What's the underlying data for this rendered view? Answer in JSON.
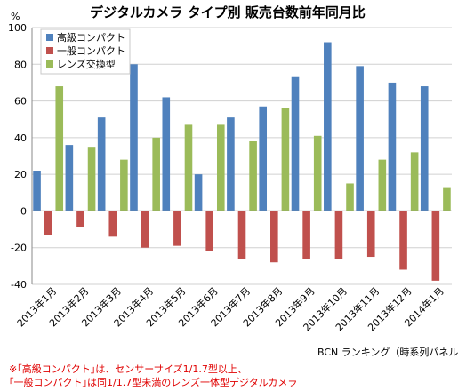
{
  "chart_data": {
    "type": "bar",
    "title": "デジタルカメラ タイプ別 販売台数前年同月比",
    "ylabel": "%",
    "xlabel": "",
    "ylim": [
      -40,
      100
    ],
    "yticks": [
      -40,
      -20,
      0,
      20,
      40,
      60,
      80,
      100
    ],
    "grid": true,
    "legend_position": "top-left",
    "categories": [
      "2013年1月",
      "2013年2月",
      "2013年3月",
      "2013年4月",
      "2013年5月",
      "2013年6月",
      "2013年7月",
      "2013年8月",
      "2013年9月",
      "2013年10月",
      "2013年11月",
      "2013年12月",
      "2014年1月"
    ],
    "series": [
      {
        "name": "高級コンパクト",
        "color": "#4f81bd",
        "values": [
          22,
          36,
          51,
          80,
          62,
          20,
          51,
          57,
          73,
          92,
          79,
          70,
          68
        ]
      },
      {
        "name": "一般コンパクト",
        "color": "#c0504d",
        "values": [
          -13,
          -9,
          -14,
          -20,
          -19,
          -22,
          -26,
          -28,
          -26,
          -26,
          -25,
          -32,
          -38
        ]
      },
      {
        "name": "レンズ交換型",
        "color": "#9bbb59",
        "values": [
          68,
          35,
          28,
          40,
          47,
          47,
          38,
          56,
          41,
          15,
          28,
          32,
          13
        ]
      }
    ]
  },
  "notes": [
    "※｢高級コンパクト｣は、センサーサイズ1/1.7型以上、",
    "｢一般コンパクト｣は同1/1.7型未満のレンズ一体型デジタルカメラ"
  ],
  "source": "BCN ランキング（時系列パネル）"
}
